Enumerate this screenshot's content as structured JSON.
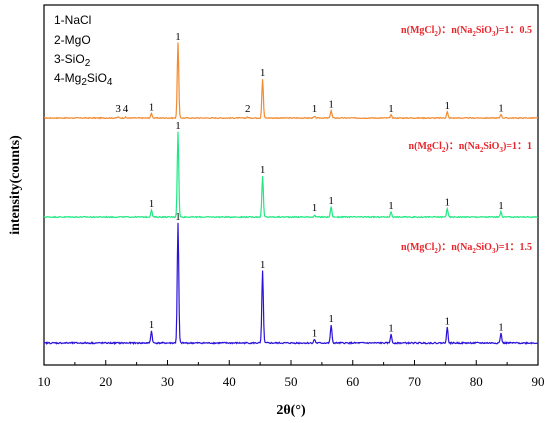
{
  "chart_data": {
    "type": "line",
    "xlabel": "2θ(°)",
    "ylabel": "intensity(counts)",
    "xlim": [
      10,
      90
    ],
    "x_ticks": [
      "10",
      "20",
      "30",
      "40",
      "50",
      "60",
      "70",
      "80",
      "90"
    ],
    "legend": [
      "1-NaCl",
      "2-MgO",
      "3-SiO2",
      "4-Mg2SiO4"
    ],
    "series": [
      {
        "name": "n(MgCl2)：n(Na2SiO3)=1：0.5",
        "color": "#f28a30",
        "baseline": 0,
        "peaks": [
          {
            "x": 22.0,
            "h": 0.012,
            "label": "3"
          },
          {
            "x": 23.2,
            "h": 0.01,
            "label": "4"
          },
          {
            "x": 27.4,
            "h": 0.06,
            "label": "1"
          },
          {
            "x": 31.7,
            "h": 1.0,
            "label": "1"
          },
          {
            "x": 43.0,
            "h": 0.012,
            "label": "2"
          },
          {
            "x": 45.4,
            "h": 0.52,
            "label": "1"
          },
          {
            "x": 53.8,
            "h": 0.018,
            "label": "1"
          },
          {
            "x": 56.5,
            "h": 0.1,
            "label": "1"
          },
          {
            "x": 66.2,
            "h": 0.04,
            "label": "1"
          },
          {
            "x": 75.3,
            "h": 0.08,
            "label": "1"
          },
          {
            "x": 84.0,
            "h": 0.05,
            "label": "1"
          }
        ]
      },
      {
        "name": "n(MgCl2)：n(Na2SiO3)=1：1",
        "color": "#1fe882",
        "baseline": 0,
        "peaks": [
          {
            "x": 27.4,
            "h": 0.08,
            "label": "1"
          },
          {
            "x": 31.7,
            "h": 1.0,
            "label": "1"
          },
          {
            "x": 45.4,
            "h": 0.48,
            "label": "1"
          },
          {
            "x": 53.8,
            "h": 0.02,
            "label": "1"
          },
          {
            "x": 56.5,
            "h": 0.12,
            "label": "1"
          },
          {
            "x": 66.2,
            "h": 0.06,
            "label": "1"
          },
          {
            "x": 75.3,
            "h": 0.1,
            "label": "1"
          },
          {
            "x": 84.0,
            "h": 0.06,
            "label": "1"
          }
        ]
      },
      {
        "name": "n(MgCl2)：n(Na2SiO3)=1：1.5",
        "color": "#2a12d8",
        "baseline": 0,
        "peaks": [
          {
            "x": 27.4,
            "h": 0.1,
            "label": "1"
          },
          {
            "x": 31.7,
            "h": 1.0,
            "label": "1"
          },
          {
            "x": 45.4,
            "h": 0.6,
            "label": "1"
          },
          {
            "x": 53.8,
            "h": 0.03,
            "label": "1"
          },
          {
            "x": 56.5,
            "h": 0.15,
            "label": "1"
          },
          {
            "x": 66.2,
            "h": 0.07,
            "label": "1"
          },
          {
            "x": 75.3,
            "h": 0.13,
            "label": "1"
          },
          {
            "x": 84.0,
            "h": 0.08,
            "label": "1"
          }
        ]
      }
    ]
  }
}
